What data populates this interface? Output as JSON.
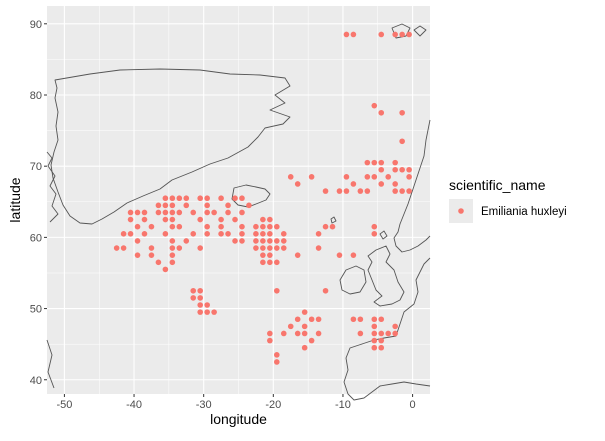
{
  "chart_data": {
    "type": "scatter",
    "title": "",
    "xlabel": "longitude",
    "ylabel": "latitude",
    "xlim": [
      -52.5,
      2.5
    ],
    "ylim": [
      38,
      92.5
    ],
    "x_ticks": [
      -50,
      -40,
      -30,
      -20,
      -10,
      0
    ],
    "y_ticks": [
      40,
      50,
      60,
      70,
      80,
      90
    ],
    "x_tick_labels": [
      "-50",
      "-40",
      "-30",
      "-20",
      "-10",
      "0"
    ],
    "y_tick_labels": [
      "40",
      "50",
      "60",
      "70",
      "80",
      "90"
    ],
    "grid": true,
    "panel_background": "#ebebeb",
    "grid_color": "#ffffff",
    "coastline_color": "#555555",
    "legend": {
      "title": "scientific_name",
      "position": "right",
      "entries": [
        {
          "label": "Emiliania huxleyi",
          "color": "#f8766d"
        }
      ]
    },
    "series": [
      {
        "name": "Emiliania huxleyi",
        "color": "#f8766d",
        "points": [
          [
            -9.5,
            88.5
          ],
          [
            -8.5,
            88.5
          ],
          [
            -4.5,
            88.5
          ],
          [
            -2.5,
            88.5
          ],
          [
            -1.5,
            88.5
          ],
          [
            -0.5,
            88.5
          ],
          [
            -5.5,
            78.5
          ],
          [
            -4.5,
            77.5
          ],
          [
            -1.5,
            77.5
          ],
          [
            -1.5,
            73.5
          ],
          [
            -6.5,
            70.5
          ],
          [
            -5.5,
            70.5
          ],
          [
            -4.5,
            70.5
          ],
          [
            -2.5,
            70.5
          ],
          [
            -4.5,
            69.5
          ],
          [
            -2.5,
            69.5
          ],
          [
            -1.5,
            69.5
          ],
          [
            -0.5,
            69.5
          ],
          [
            -17.5,
            68.5
          ],
          [
            -14.5,
            68.5
          ],
          [
            -9.5,
            68.5
          ],
          [
            -6.5,
            68.5
          ],
          [
            -5.5,
            68.5
          ],
          [
            -3.5,
            68.5
          ],
          [
            -0.5,
            68.5
          ],
          [
            -16.5,
            67.5
          ],
          [
            -8.5,
            67.5
          ],
          [
            -4.5,
            67.5
          ],
          [
            -2.5,
            67.5
          ],
          [
            -12.5,
            66.5
          ],
          [
            -10.5,
            66.5
          ],
          [
            -9.5,
            66.5
          ],
          [
            -7.5,
            66.5
          ],
          [
            -6.5,
            66.5
          ],
          [
            -2.5,
            66.5
          ],
          [
            -1.5,
            66.5
          ],
          [
            -0.5,
            66.5
          ],
          [
            -35.5,
            65.5
          ],
          [
            -34.5,
            65.5
          ],
          [
            -33.5,
            65.5
          ],
          [
            -32.5,
            65.5
          ],
          [
            -30.5,
            65.5
          ],
          [
            -29.5,
            65.5
          ],
          [
            -27.5,
            65.5
          ],
          [
            -25.5,
            65.5
          ],
          [
            -24.5,
            65.5
          ],
          [
            -36.5,
            64.5
          ],
          [
            -35.5,
            64.5
          ],
          [
            -34.5,
            64.5
          ],
          [
            -32.5,
            64.5
          ],
          [
            -29.5,
            64.5
          ],
          [
            -26.5,
            64.5
          ],
          [
            -23.5,
            64.5
          ],
          [
            -40.5,
            63.5
          ],
          [
            -39.5,
            63.5
          ],
          [
            -38.5,
            63.5
          ],
          [
            -36.5,
            63.5
          ],
          [
            -35.5,
            63.5
          ],
          [
            -34.5,
            63.5
          ],
          [
            -33.5,
            63.5
          ],
          [
            -31.5,
            63.5
          ],
          [
            -29.5,
            63.5
          ],
          [
            -28.5,
            63.5
          ],
          [
            -26.5,
            63.5
          ],
          [
            -24.5,
            63.5
          ],
          [
            -40.5,
            62.5
          ],
          [
            -38.5,
            62.5
          ],
          [
            -35.5,
            62.5
          ],
          [
            -34.5,
            62.5
          ],
          [
            -30.5,
            62.5
          ],
          [
            -27.5,
            62.5
          ],
          [
            -25.5,
            62.5
          ],
          [
            -21.5,
            62.5
          ],
          [
            -20.5,
            62.5
          ],
          [
            -39.5,
            61.5
          ],
          [
            -37.5,
            61.5
          ],
          [
            -34.5,
            61.5
          ],
          [
            -33.5,
            61.5
          ],
          [
            -29.5,
            61.5
          ],
          [
            -27.5,
            61.5
          ],
          [
            -24.5,
            61.5
          ],
          [
            -22.5,
            61.5
          ],
          [
            -21.5,
            61.5
          ],
          [
            -20.5,
            61.5
          ],
          [
            -19.5,
            61.5
          ],
          [
            -12.5,
            61.5
          ],
          [
            -11.5,
            61.5
          ],
          [
            -5.5,
            61.5
          ],
          [
            -41.5,
            60.5
          ],
          [
            -40.5,
            60.5
          ],
          [
            -38.5,
            60.5
          ],
          [
            -35.5,
            60.5
          ],
          [
            -31.5,
            60.5
          ],
          [
            -29.5,
            60.5
          ],
          [
            -27.5,
            60.5
          ],
          [
            -26.5,
            60.5
          ],
          [
            -24.5,
            60.5
          ],
          [
            -22.5,
            60.5
          ],
          [
            -21.5,
            60.5
          ],
          [
            -20.5,
            60.5
          ],
          [
            -18.5,
            60.5
          ],
          [
            -13.5,
            60.5
          ],
          [
            -5.5,
            60.5
          ],
          [
            -39.5,
            59.5
          ],
          [
            -34.5,
            59.5
          ],
          [
            -32.5,
            59.5
          ],
          [
            -25.5,
            59.5
          ],
          [
            -24.5,
            59.5
          ],
          [
            -22.5,
            59.5
          ],
          [
            -21.5,
            59.5
          ],
          [
            -20.5,
            59.5
          ],
          [
            -19.5,
            59.5
          ],
          [
            -18.5,
            59.5
          ],
          [
            -42.5,
            58.5
          ],
          [
            -41.5,
            58.5
          ],
          [
            -37.5,
            58.5
          ],
          [
            -34.5,
            58.5
          ],
          [
            -33.5,
            58.5
          ],
          [
            -30.5,
            58.5
          ],
          [
            -22.5,
            58.5
          ],
          [
            -21.5,
            58.5
          ],
          [
            -20.5,
            58.5
          ],
          [
            -19.5,
            58.5
          ],
          [
            -18.5,
            58.5
          ],
          [
            -13.5,
            58.5
          ],
          [
            -39.5,
            57.5
          ],
          [
            -37.5,
            57.5
          ],
          [
            -34.5,
            57.5
          ],
          [
            -21.5,
            57.5
          ],
          [
            -20.5,
            57.5
          ],
          [
            -16.5,
            57.5
          ],
          [
            -10.5,
            57.5
          ],
          [
            -8.5,
            57.5
          ],
          [
            -36.5,
            56.5
          ],
          [
            -34.5,
            56.5
          ],
          [
            -21.5,
            56.5
          ],
          [
            -20.5,
            56.5
          ],
          [
            -19.5,
            56.5
          ],
          [
            -35.5,
            55.5
          ],
          [
            -19.5,
            52.5
          ],
          [
            -12.5,
            52.5
          ],
          [
            -31.5,
            52.5
          ],
          [
            -30.5,
            52.5
          ],
          [
            -31.5,
            51.5
          ],
          [
            -30.5,
            51.5
          ],
          [
            -30.5,
            50.5
          ],
          [
            -29.5,
            50.5
          ],
          [
            -30.5,
            49.5
          ],
          [
            -29.5,
            49.5
          ],
          [
            -28.5,
            49.5
          ],
          [
            -15.5,
            49.5
          ],
          [
            -16.5,
            48.5
          ],
          [
            -14.5,
            48.5
          ],
          [
            -13.5,
            48.5
          ],
          [
            -8.5,
            48.5
          ],
          [
            -7.5,
            48.5
          ],
          [
            -5.5,
            48.5
          ],
          [
            -4.5,
            48.5
          ],
          [
            -17.5,
            47.5
          ],
          [
            -15.5,
            47.5
          ],
          [
            -5.5,
            47.5
          ],
          [
            -2.5,
            47.5
          ],
          [
            -18.5,
            46.5
          ],
          [
            -16.5,
            46.5
          ],
          [
            -15.5,
            46.5
          ],
          [
            -13.5,
            46.5
          ],
          [
            -7.5,
            46.5
          ],
          [
            -5.5,
            46.5
          ],
          [
            -4.5,
            46.5
          ],
          [
            -3.5,
            46.5
          ],
          [
            -2.5,
            46.5
          ],
          [
            -20.5,
            46.5
          ],
          [
            -20.5,
            45.5
          ],
          [
            -14.5,
            45.5
          ],
          [
            -5.5,
            45.5
          ],
          [
            -4.5,
            45.5
          ],
          [
            -15.5,
            44.5
          ],
          [
            -5.5,
            44.5
          ],
          [
            -4.5,
            44.5
          ],
          [
            -19.5,
            43.5
          ],
          [
            -19.5,
            42.5
          ]
        ]
      }
    ]
  }
}
